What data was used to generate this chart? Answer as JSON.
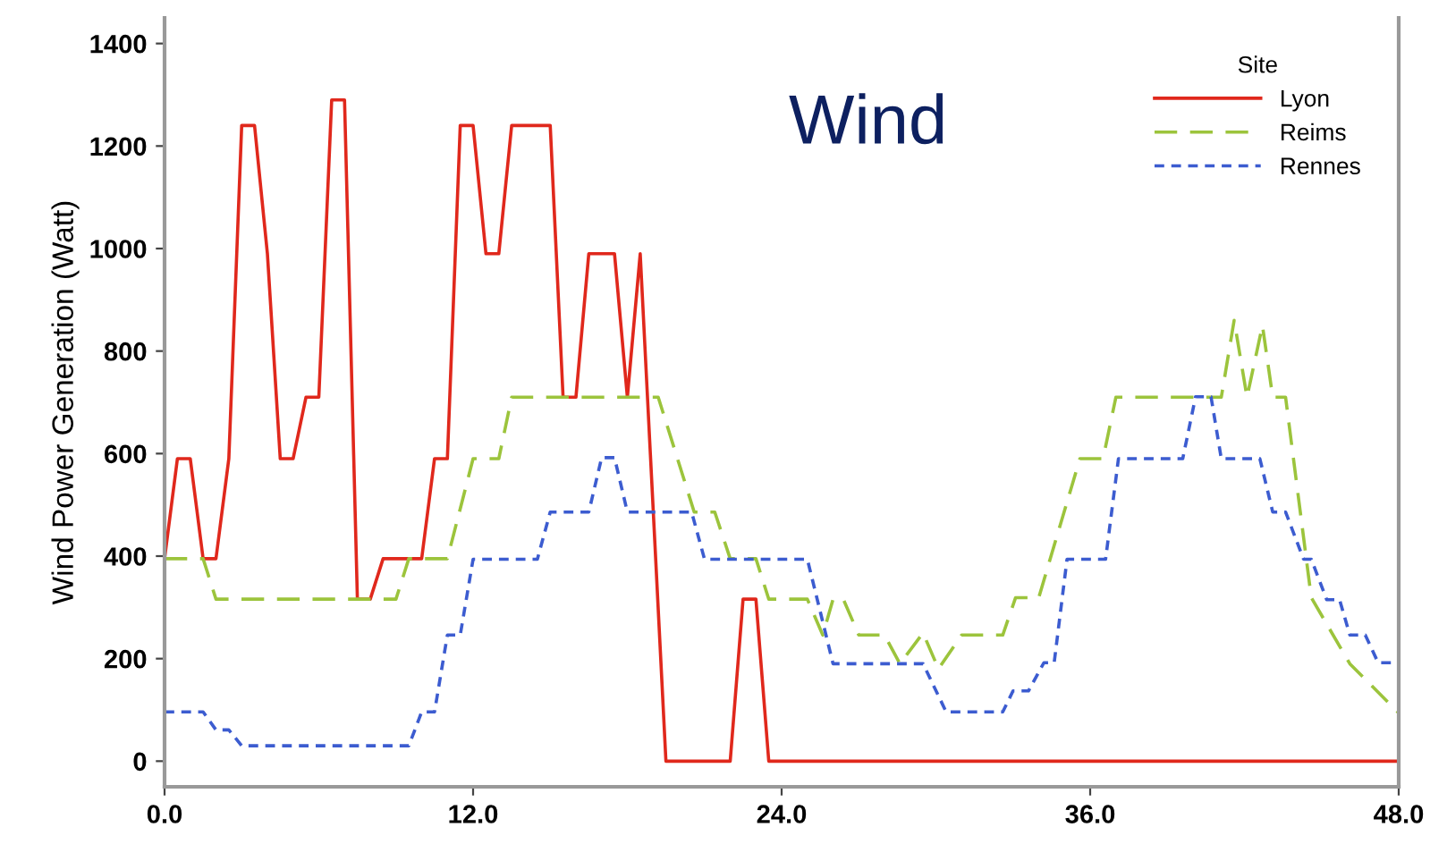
{
  "chart_data": {
    "type": "line",
    "title": "Wind",
    "ylabel": "Wind Power Generation (Watt)",
    "legend_title": "Site",
    "legend": "top right",
    "grid": false,
    "marker": "none",
    "xlim": [
      0,
      48
    ],
    "ylim": [
      -50,
      1450
    ],
    "xticks": [
      {
        "value": 0,
        "label": "0.0"
      },
      {
        "value": 12,
        "label": "12.0"
      },
      {
        "value": 24,
        "label": "24.0"
      },
      {
        "value": 36,
        "label": "36.0"
      },
      {
        "value": 48,
        "label": "48.0"
      }
    ],
    "yticks": [
      0,
      200,
      400,
      600,
      800,
      1000,
      1200,
      1400
    ],
    "series": [
      {
        "name": "Lyon",
        "color": "#e0281c",
        "line_style": "solid",
        "x": [
          0,
          0.5,
          1,
          1.5,
          2,
          2.5,
          3,
          3.5,
          4,
          4.5,
          5,
          5.5,
          6,
          6.5,
          7,
          7.5,
          8,
          8.5,
          9.5,
          10,
          10.5,
          11,
          11.5,
          12,
          12.5,
          13,
          13.5,
          15,
          15.5,
          16,
          16.5,
          17.5,
          18,
          18.5,
          19.5,
          22,
          22.5,
          23,
          23.5,
          48
        ],
        "values": [
          395,
          590,
          590,
          395,
          395,
          590,
          1240,
          1240,
          990,
          590,
          590,
          710,
          710,
          1290,
          1290,
          316,
          316,
          395,
          395,
          395,
          590,
          590,
          1240,
          1240,
          990,
          990,
          1240,
          1240,
          710,
          710,
          990,
          990,
          710,
          990,
          0,
          0,
          316,
          316,
          0,
          0
        ]
      },
      {
        "name": "Reims",
        "color": "#9cc43c",
        "line_style": "dashed",
        "x": [
          0,
          1.5,
          2,
          9,
          9.5,
          11,
          12,
          13,
          13.5,
          19.2,
          20.6,
          21.4,
          22,
          23,
          23.5,
          25,
          25.6,
          26,
          26.4,
          27,
          28,
          28.6,
          29.5,
          30.1,
          31,
          32.6,
          33.1,
          34,
          35.6,
          36.5,
          37,
          41.1,
          41.6,
          42.1,
          42.7,
          43.1,
          43.6,
          44.6,
          46.1,
          48
        ],
        "values": [
          395,
          395,
          316,
          316,
          395,
          395,
          590,
          590,
          710,
          710,
          486,
          486,
          395,
          395,
          316,
          316,
          246,
          316,
          316,
          246,
          246,
          190,
          250,
          180,
          246,
          246,
          319,
          319,
          590,
          590,
          710,
          710,
          860,
          710,
          850,
          710,
          710,
          319,
          190,
          94
        ]
      },
      {
        "name": "Rennes",
        "color": "#3c5cd0",
        "line_style": "dotted",
        "x": [
          0,
          1.5,
          2,
          2.5,
          3,
          9.5,
          10,
          10.5,
          11,
          11.5,
          12,
          14.5,
          15,
          16.5,
          17,
          17.5,
          18,
          20.5,
          21,
          25,
          26,
          29.5,
          30.4,
          32.6,
          33,
          33.6,
          34.2,
          34.6,
          35.1,
          36.6,
          37.1,
          39.6,
          40.1,
          40.7,
          41.1,
          42.6,
          43.1,
          43.6,
          44.3,
          44.6,
          45.2,
          45.7,
          46.1,
          46.7,
          47.2,
          48
        ],
        "values": [
          96,
          96,
          61,
          61,
          30,
          30,
          96,
          96,
          246,
          246,
          394,
          394,
          486,
          486,
          592,
          592,
          486,
          486,
          394,
          394,
          190,
          190,
          96,
          96,
          137,
          137,
          192,
          192,
          394,
          394,
          590,
          590,
          711,
          711,
          590,
          590,
          486,
          486,
          394,
          394,
          315,
          315,
          246,
          246,
          192,
          192
        ]
      }
    ]
  }
}
